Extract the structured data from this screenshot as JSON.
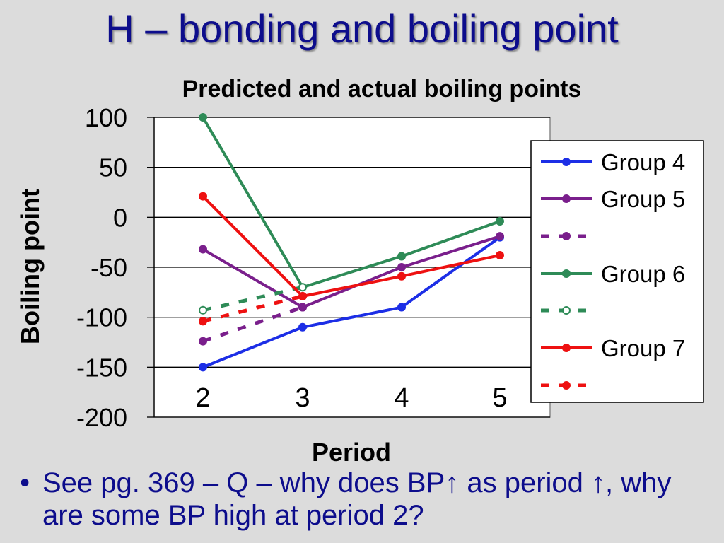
{
  "slide": {
    "title": "H – bonding and boiling point",
    "bullet": "See pg. 369 – Q – why does BP↑ as period ↑, why are some BP high at period 2?"
  },
  "colors": {
    "background": "#dcdcdc",
    "title": "#0d0d8c",
    "group4": "#1c2ee6",
    "group5": "#7a1f8c",
    "group6": "#2e8b57",
    "group7": "#ee1111"
  },
  "chart_data": {
    "type": "line",
    "title": "Predicted and actual boiling points",
    "xlabel": "Period",
    "ylabel": "Boiling point",
    "categories": [
      "2",
      "3",
      "4",
      "5"
    ],
    "ylim": [
      -200,
      100
    ],
    "yticks": [
      100,
      50,
      0,
      -50,
      -100,
      -150,
      -200
    ],
    "grid": true,
    "legend_position": "right",
    "series": [
      {
        "name": "Group 4",
        "color": "#1c2ee6",
        "style": "solid",
        "x": [
          "2",
          "3",
          "4",
          "5"
        ],
        "values": [
          -150,
          -110,
          -90,
          -20
        ]
      },
      {
        "name": "Group 5",
        "color": "#7a1f8c",
        "style": "solid",
        "x": [
          "2",
          "3",
          "4",
          "5"
        ],
        "values": [
          -32,
          -90,
          -50,
          -19
        ]
      },
      {
        "name": "",
        "color": "#7a1f8c",
        "style": "dotted",
        "x": [
          "2",
          "3"
        ],
        "values": [
          -124,
          -90
        ]
      },
      {
        "name": "Group 6",
        "color": "#2e8b57",
        "style": "solid",
        "x": [
          "2",
          "3",
          "4",
          "5"
        ],
        "values": [
          100,
          -70,
          -39,
          -4
        ]
      },
      {
        "name": "",
        "color": "#2e8b57",
        "style": "dotted",
        "x": [
          "2",
          "3"
        ],
        "values": [
          -93,
          -70
        ]
      },
      {
        "name": "Group 7",
        "color": "#ee1111",
        "style": "solid",
        "x": [
          "2",
          "3",
          "4",
          "5"
        ],
        "values": [
          21,
          -79,
          -59,
          -38
        ]
      },
      {
        "name": "",
        "color": "#ee1111",
        "style": "dotted",
        "x": [
          "2",
          "3"
        ],
        "values": [
          -104,
          -79
        ]
      }
    ]
  }
}
